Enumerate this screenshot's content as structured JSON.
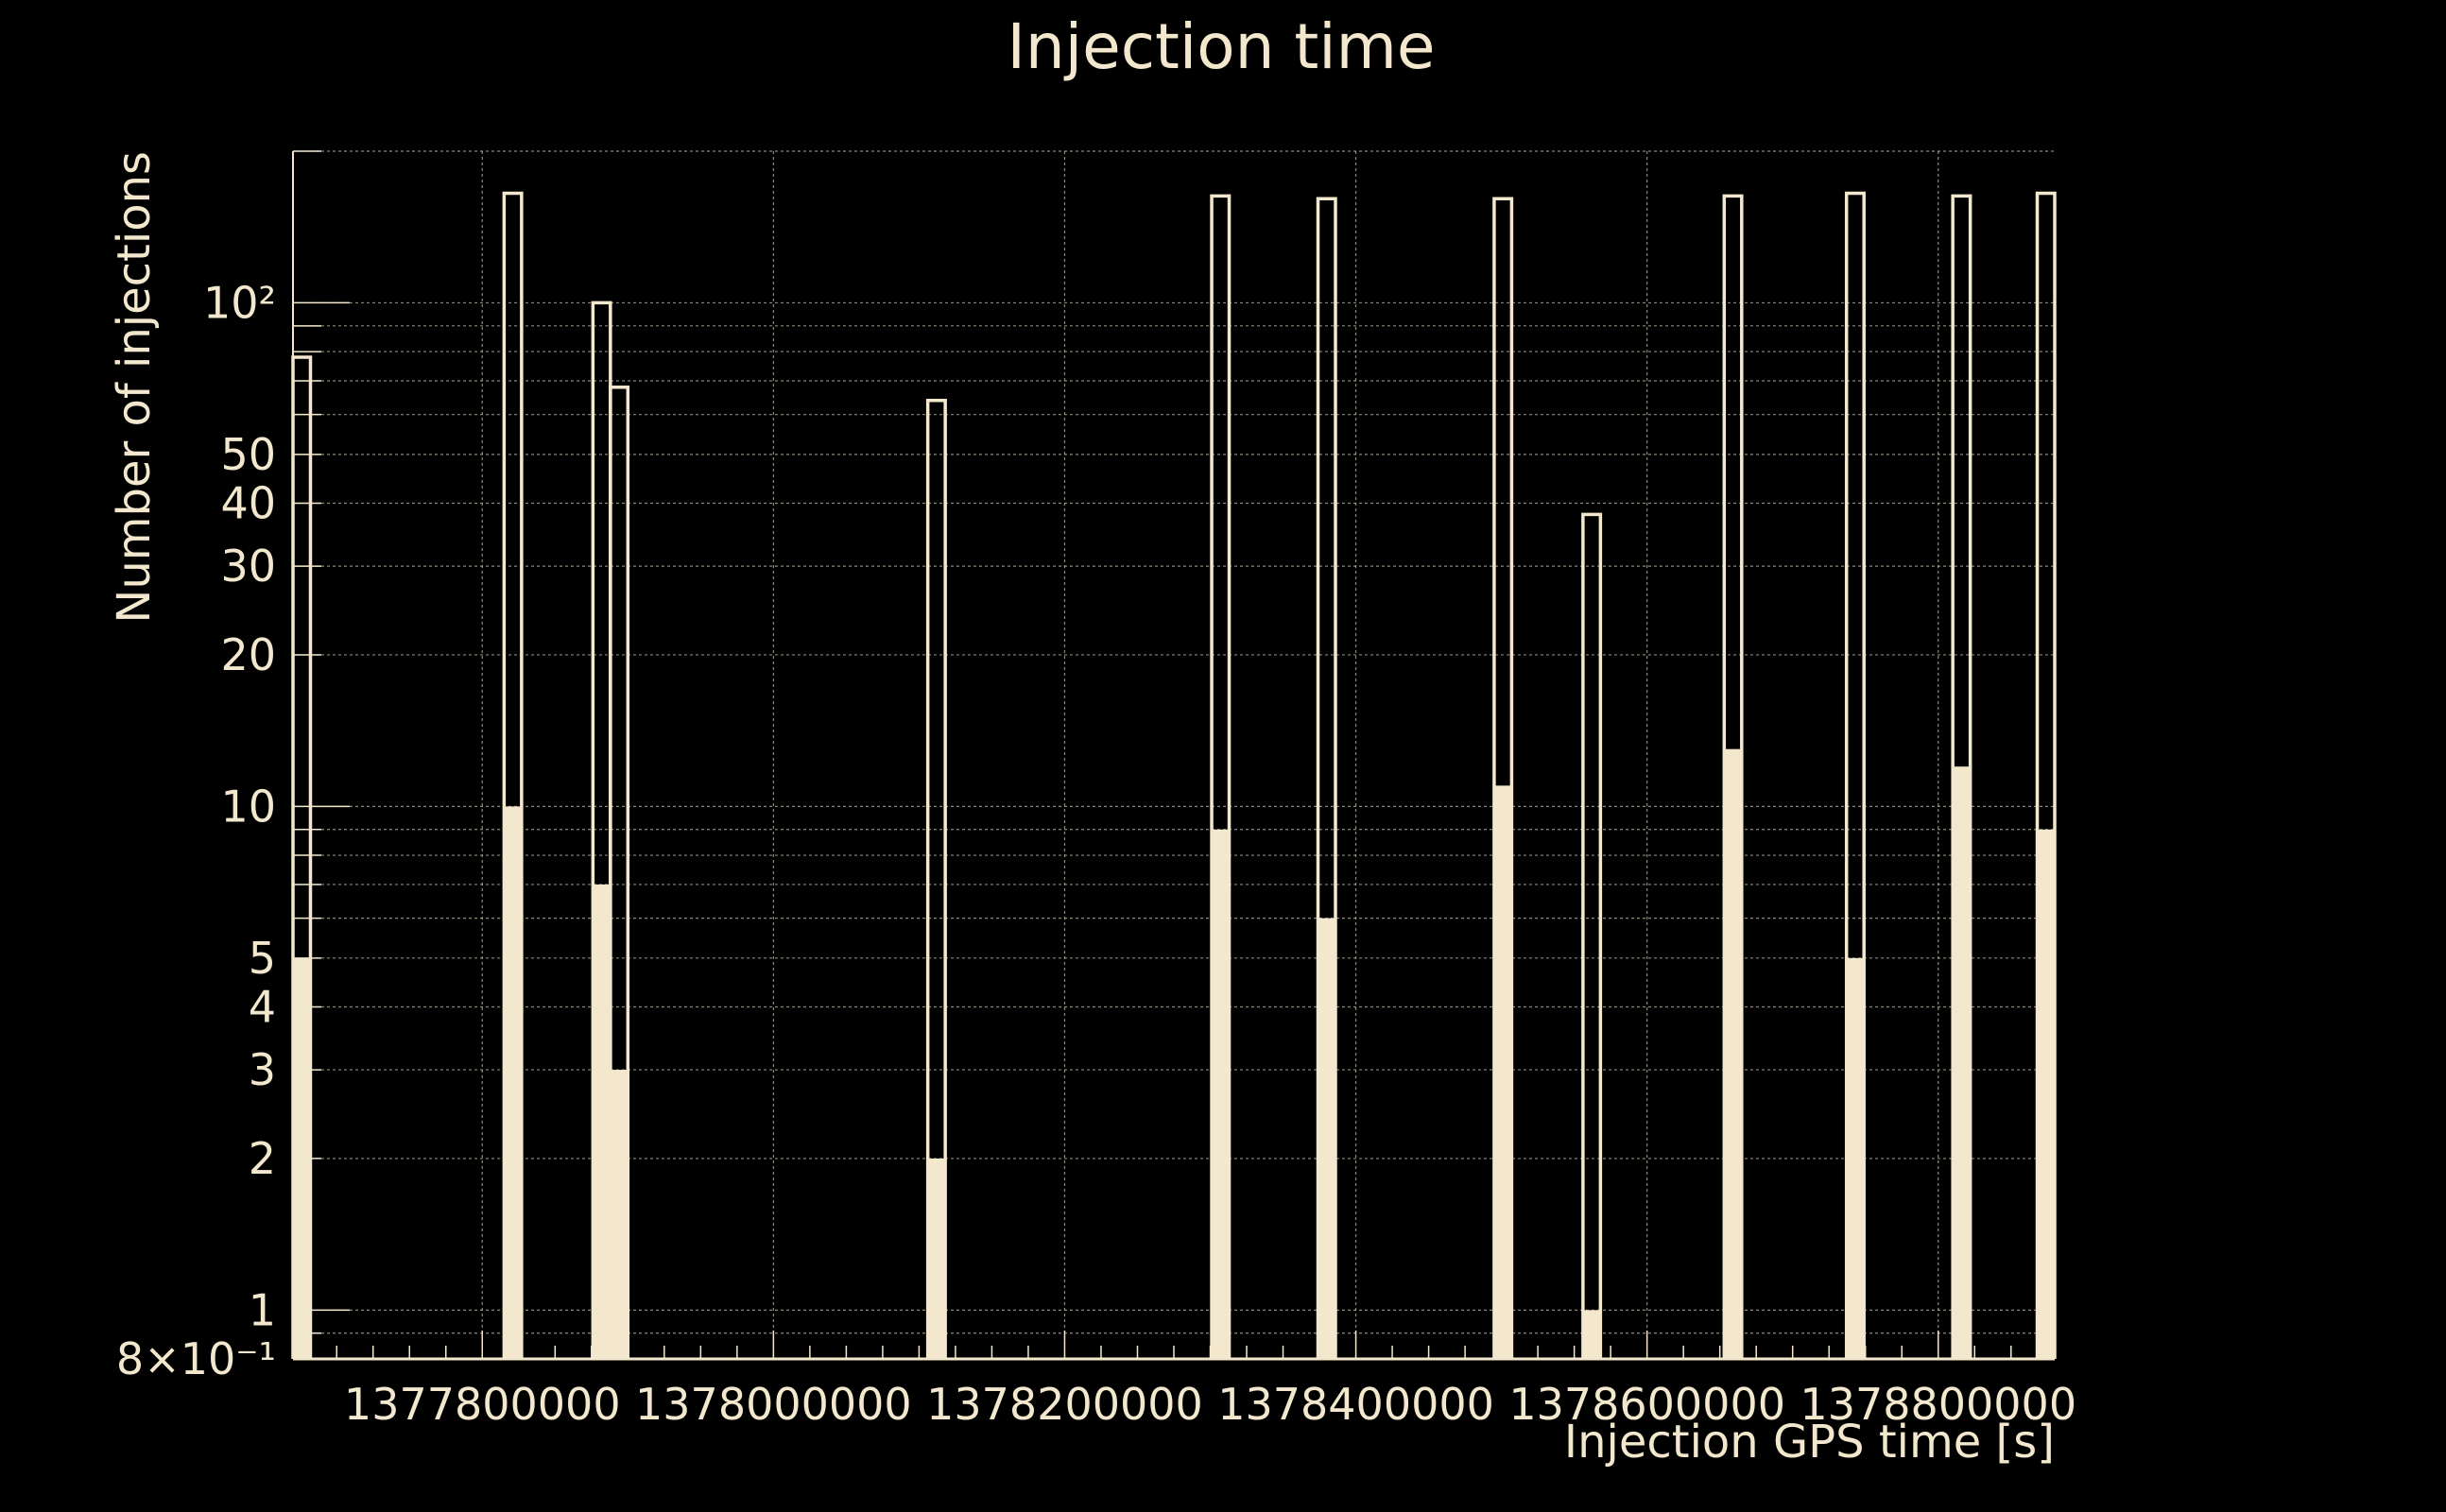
{
  "colors": {
    "background": "#000000",
    "foreground": "#f3e8cd",
    "grid": "#bdb6a6"
  },
  "chart_data": {
    "type": "bar",
    "title": "Injection time",
    "xlabel": "Injection GPS time [s]",
    "ylabel": "Number of injections",
    "y_scale": "log",
    "xlim": [
      1377670000,
      1378880000
    ],
    "ylim": [
      0.8,
      200
    ],
    "grid": true,
    "x_ticks": [
      1377800000,
      1378000000,
      1378200000,
      1378400000,
      1378600000,
      1378800000
    ],
    "x_tick_labels": [
      "1377800000",
      "1378000000",
      "1378200000",
      "1378400000",
      "1378600000",
      "1378800000"
    ],
    "y_ticks": [
      {
        "value": 0.8,
        "label": "8×10⁻¹"
      },
      {
        "value": 1,
        "label": "1"
      },
      {
        "value": 2,
        "label": "2"
      },
      {
        "value": 3,
        "label": "3"
      },
      {
        "value": 4,
        "label": "4"
      },
      {
        "value": 5,
        "label": "5"
      },
      {
        "value": 10,
        "label": "10"
      },
      {
        "value": 20,
        "label": "20"
      },
      {
        "value": 30,
        "label": "30"
      },
      {
        "value": 40,
        "label": "40"
      },
      {
        "value": 50,
        "label": "50"
      },
      {
        "value": 100,
        "label": "10²"
      }
    ],
    "series": [
      {
        "style": "outline",
        "bins": [
          {
            "x0": 1377670000,
            "x1": 1377682000,
            "value": 78
          },
          {
            "x0": 1377815000,
            "x1": 1377827000,
            "value": 165
          },
          {
            "x0": 1377876000,
            "x1": 1377888000,
            "value": 100
          },
          {
            "x0": 1377888000,
            "x1": 1377900000,
            "value": 68
          },
          {
            "x0": 1378106000,
            "x1": 1378118000,
            "value": 64
          },
          {
            "x0": 1378301000,
            "x1": 1378313000,
            "value": 163
          },
          {
            "x0": 1378374000,
            "x1": 1378386000,
            "value": 161
          },
          {
            "x0": 1378495000,
            "x1": 1378507000,
            "value": 161
          },
          {
            "x0": 1378556000,
            "x1": 1378568000,
            "value": 38
          },
          {
            "x0": 1378653000,
            "x1": 1378665000,
            "value": 163
          },
          {
            "x0": 1378737000,
            "x1": 1378749000,
            "value": 165
          },
          {
            "x0": 1378810000,
            "x1": 1378822000,
            "value": 163
          },
          {
            "x0": 1378868000,
            "x1": 1378880000,
            "value": 165
          }
        ]
      },
      {
        "style": "filled",
        "bins": [
          {
            "x0": 1377670000,
            "x1": 1377682000,
            "value": 5
          },
          {
            "x0": 1377815000,
            "x1": 1377827000,
            "value": 10
          },
          {
            "x0": 1377876000,
            "x1": 1377888000,
            "value": 7
          },
          {
            "x0": 1377888000,
            "x1": 1377900000,
            "value": 3
          },
          {
            "x0": 1378106000,
            "x1": 1378118000,
            "value": 2
          },
          {
            "x0": 1378301000,
            "x1": 1378313000,
            "value": 9
          },
          {
            "x0": 1378374000,
            "x1": 1378386000,
            "value": 6
          },
          {
            "x0": 1378495000,
            "x1": 1378507000,
            "value": 11
          },
          {
            "x0": 1378556000,
            "x1": 1378568000,
            "value": 1
          },
          {
            "x0": 1378653000,
            "x1": 1378665000,
            "value": 13
          },
          {
            "x0": 1378737000,
            "x1": 1378749000,
            "value": 5
          },
          {
            "x0": 1378810000,
            "x1": 1378822000,
            "value": 12
          },
          {
            "x0": 1378868000,
            "x1": 1378880000,
            "value": 9
          }
        ]
      }
    ]
  }
}
